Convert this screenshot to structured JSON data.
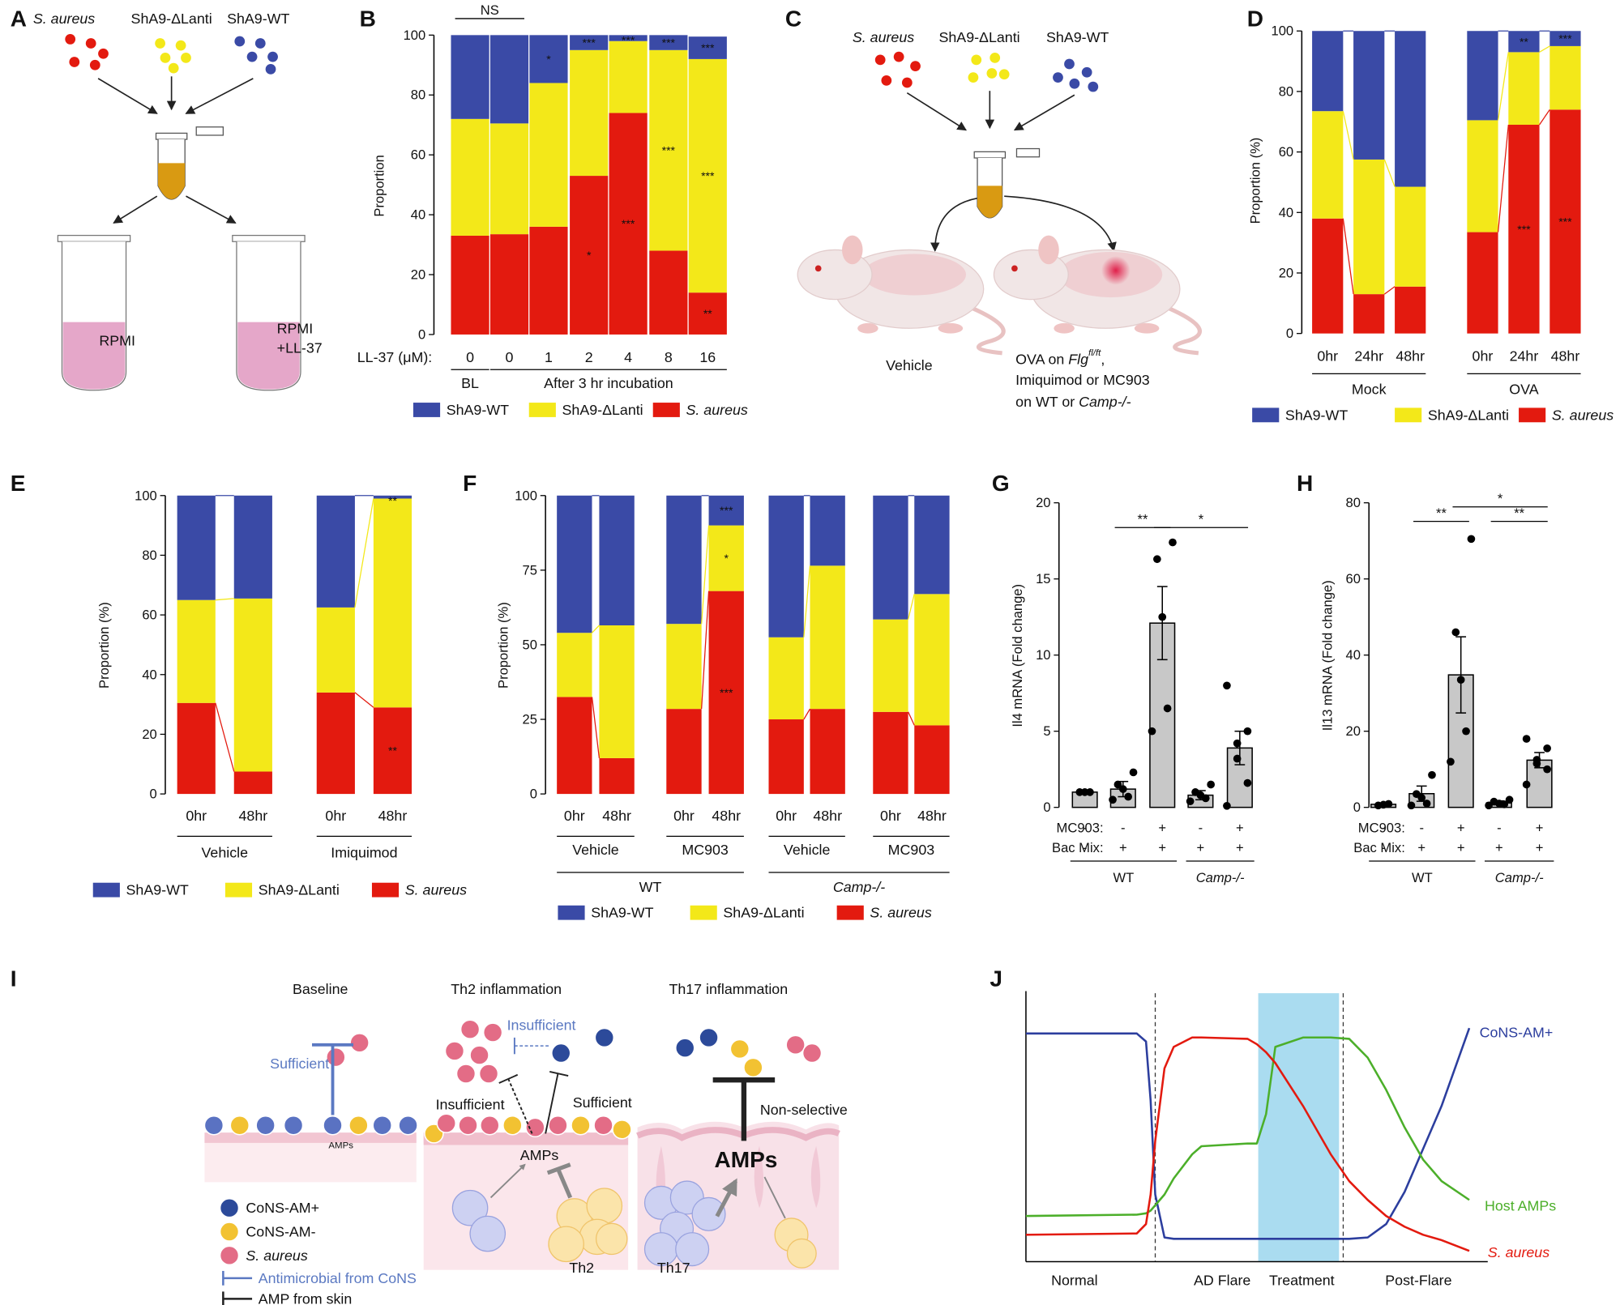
{
  "panel_labels": [
    "A",
    "B",
    "C",
    "D",
    "E",
    "F",
    "G",
    "H",
    "I",
    "J"
  ],
  "diagram_a": {
    "strains": [
      "S. aureus",
      "ShA9-ΔLanti",
      "ShA9-WT"
    ],
    "tube_left": "RPMI",
    "tube_right": [
      "RPMI",
      "+LL-37"
    ]
  },
  "diagram_c": {
    "strains": [
      "S. aureus",
      "ShA9-ΔLanti",
      "ShA9-WT"
    ],
    "left_label": "Vehicle",
    "right_label": {
      "line1": "OVA on ",
      "gene": "Flg",
      "superscript": "fl/ft",
      "line1_end": ",",
      "line2": "Imiquimod or MC903",
      "line3": "on WT or ",
      "line3_gene": "Camp-/-"
    }
  },
  "diagram_i": {
    "titles": [
      "Baseline",
      "Th2 inflammation",
      "Th17 inflammation"
    ],
    "baseline": {
      "sufficient": "Sufficient",
      "amps": "AMPs"
    },
    "th2": {
      "insufficient_cons": "Insufficient",
      "insufficient_skin": "Insufficient",
      "sufficient": "Sufficient",
      "amps": "AMPs",
      "cells": "Th2"
    },
    "th17": {
      "non_selective": "Non-selective",
      "amps": "AMPs",
      "cells": "Th17"
    },
    "legend": [
      "CoNS-AM+",
      "CoNS-AM-",
      "S. aureus",
      "Antimicrobial from CoNS",
      "AMP from skin"
    ]
  },
  "chart_data": [
    {
      "type": "stacked_bar",
      "ylabel": "Proportion",
      "x_label": "LL-37 (μM):",
      "ylim": [
        0,
        100
      ],
      "yticks": [
        0,
        20,
        40,
        60,
        80,
        100
      ],
      "groups": [
        {
          "label": "BL",
          "categories": [
            "0"
          ]
        },
        {
          "label": "After 3 hr incubation",
          "categories": [
            "0",
            "1",
            "2",
            "4",
            "8",
            "16"
          ]
        }
      ],
      "series": [
        {
          "name": "ShA9-WT",
          "color": "#3a4aa6",
          "values": [
            28,
            29.5,
            16,
            5,
            2,
            5,
            7.5
          ],
          "significance": [
            null,
            null,
            "*",
            "***",
            "***",
            "***",
            "***"
          ]
        },
        {
          "name": "ShA9-ΔLanti",
          "color": "#f3e819",
          "values": [
            39,
            37,
            48,
            42,
            24,
            67,
            78
          ],
          "significance": [
            null,
            null,
            null,
            null,
            null,
            "***",
            "***"
          ]
        },
        {
          "name": "S. aureus",
          "color": "#e31a0f",
          "values": [
            33,
            33.5,
            36,
            53,
            74,
            28,
            14
          ],
          "significance": [
            null,
            null,
            null,
            "*",
            "***",
            null,
            "**"
          ]
        }
      ],
      "comparisons": [
        {
          "label": "NS",
          "between": [
            0,
            1
          ]
        }
      ]
    },
    {
      "type": "stacked_bar",
      "ylabel": "Proportion (%)",
      "ylim": [
        0,
        100
      ],
      "yticks": [
        0,
        20,
        40,
        60,
        80,
        100
      ],
      "groups": [
        {
          "label": "Mock",
          "categories": [
            "0hr",
            "24hr",
            "48hr"
          ]
        },
        {
          "label": "OVA",
          "categories": [
            "0hr",
            "24hr",
            "48hr"
          ]
        }
      ],
      "series": [
        {
          "name": "ShA9-WT",
          "color": "#3a4aa6",
          "values": [
            26.5,
            42.5,
            51.5,
            29.5,
            7,
            5
          ],
          "significance": [
            null,
            null,
            null,
            null,
            "**",
            "***"
          ]
        },
        {
          "name": "ShA9-ΔLanti",
          "color": "#f3e819",
          "values": [
            35.5,
            44.5,
            33,
            37,
            24,
            21
          ]
        },
        {
          "name": "S. aureus",
          "color": "#e31a0f",
          "values": [
            38,
            13,
            15.5,
            33.5,
            69,
            74
          ],
          "significance": [
            null,
            null,
            null,
            null,
            "***",
            "***"
          ]
        }
      ]
    },
    {
      "type": "stacked_bar",
      "ylabel": "Proportion (%)",
      "ylim": [
        0,
        100
      ],
      "yticks": [
        0,
        20,
        40,
        60,
        80,
        100
      ],
      "groups": [
        {
          "label": "Vehicle",
          "categories": [
            "0hr",
            "48hr"
          ]
        },
        {
          "label": "Imiquimod",
          "categories": [
            "0hr",
            "48hr"
          ]
        }
      ],
      "series": [
        {
          "name": "ShA9-WT",
          "color": "#3a4aa6",
          "values": [
            35,
            34.5,
            37.5,
            1
          ],
          "significance": [
            null,
            null,
            null,
            "**"
          ]
        },
        {
          "name": "ShA9-ΔLanti",
          "color": "#f3e819",
          "values": [
            34.5,
            58,
            28.5,
            70
          ]
        },
        {
          "name": "S. aureus",
          "color": "#e31a0f",
          "values": [
            30.5,
            7.5,
            34,
            29
          ],
          "significance": [
            null,
            null,
            null,
            "**"
          ]
        }
      ]
    },
    {
      "type": "stacked_bar",
      "ylabel": "Proportion (%)",
      "ylim": [
        0,
        100
      ],
      "yticks": [
        0,
        25,
        50,
        75,
        100
      ],
      "supergroups": [
        {
          "label": "WT",
          "groups": [
            {
              "label": "Vehicle",
              "categories": [
                "0hr",
                "48hr"
              ]
            },
            {
              "label": "MC903",
              "categories": [
                "0hr",
                "48hr"
              ]
            }
          ]
        },
        {
          "label": "Camp-/-",
          "groups": [
            {
              "label": "Vehicle",
              "categories": [
                "0hr",
                "48hr"
              ]
            },
            {
              "label": "MC903",
              "categories": [
                "0hr",
                "48hr"
              ]
            }
          ]
        }
      ],
      "series": [
        {
          "name": "ShA9-WT",
          "color": "#3a4aa6",
          "values": [
            46,
            43.5,
            43,
            10,
            47.5,
            23.5,
            41.5,
            33
          ],
          "significance": [
            null,
            null,
            null,
            "***",
            null,
            null,
            null,
            null
          ]
        },
        {
          "name": "ShA9-ΔLanti",
          "color": "#f3e819",
          "values": [
            21.5,
            44.5,
            28.5,
            22,
            27.5,
            48,
            31,
            44
          ],
          "significance": [
            null,
            null,
            null,
            "*",
            null,
            null,
            null,
            null
          ]
        },
        {
          "name": "S. aureus",
          "color": "#e31a0f",
          "values": [
            32.5,
            12,
            28.5,
            68,
            25,
            28.5,
            27.5,
            23
          ],
          "significance": [
            null,
            null,
            null,
            "***",
            null,
            null,
            null,
            null
          ]
        }
      ]
    },
    {
      "type": "bar_dot",
      "ylabel": "Il4 mRNA (Fold change)",
      "color": "#c8c8c8",
      "ylim": [
        0,
        20
      ],
      "yticks": [
        0,
        5,
        10,
        15,
        20
      ],
      "row_labels": [
        "MC903:",
        "Bac Mix:"
      ],
      "groups": [
        {
          "label": "WT",
          "columns": [
            [
              "-",
              "-"
            ],
            [
              "-",
              "+"
            ],
            [
              "+",
              "+"
            ]
          ]
        },
        {
          "label": "Camp-/-",
          "columns": [
            [
              "-",
              "+"
            ],
            [
              "+",
              "+"
            ]
          ]
        }
      ],
      "values": [
        1.0,
        1.2,
        12.1,
        0.8,
        3.9
      ],
      "errors": [
        0.05,
        0.5,
        2.4,
        0.3,
        1.1
      ],
      "points": [
        [
          1,
          1,
          1
        ],
        [
          0.5,
          0.7,
          1.2,
          1.5,
          2.3
        ],
        [
          5,
          6.5,
          12.5,
          16.3,
          17.4
        ],
        [
          0.4,
          0.6,
          0.8,
          1,
          1.5
        ],
        [
          0.1,
          1.6,
          3.2,
          4.2,
          5,
          8
        ]
      ],
      "comparisons": [
        {
          "label": "**",
          "between": [
            1,
            2
          ]
        },
        {
          "label": "*",
          "between": [
            2,
            4
          ]
        }
      ]
    },
    {
      "type": "bar_dot",
      "ylabel": "Il13 mRNA (Fold change)",
      "color": "#c8c8c8",
      "ylim": [
        0,
        80
      ],
      "yticks": [
        0,
        20,
        40,
        60,
        80
      ],
      "row_labels": [
        "MC903:",
        "Bac Mix:"
      ],
      "groups": [
        {
          "label": "WT",
          "columns": [
            [
              "-",
              "-"
            ],
            [
              "-",
              "+"
            ],
            [
              "+",
              "+"
            ]
          ]
        },
        {
          "label": "Camp-/-",
          "columns": [
            [
              "-",
              "+"
            ],
            [
              "+",
              "+"
            ]
          ]
        }
      ],
      "values": [
        0.8,
        3.6,
        34.8,
        1.2,
        12.4
      ],
      "errors": [
        0.1,
        2,
        10,
        0.5,
        2
      ],
      "points": [
        [
          0.5,
          0.7,
          0.9
        ],
        [
          0.5,
          1,
          2.5,
          3.5,
          8.5
        ],
        [
          12,
          20,
          33.5,
          46,
          70.5
        ],
        [
          0.5,
          0.8,
          1,
          1.5,
          2
        ],
        [
          6,
          10,
          11.5,
          12.5,
          15.5,
          18
        ]
      ],
      "comparisons": [
        {
          "label": "**",
          "between": [
            1,
            2
          ]
        },
        {
          "label": "*",
          "between": [
            2,
            4
          ]
        },
        {
          "label": "**",
          "between": [
            3,
            4
          ]
        }
      ]
    },
    {
      "type": "line",
      "xlim": [
        0,
        100
      ],
      "ylim": [
        0,
        100
      ],
      "x": [
        0,
        24,
        26,
        27,
        28,
        30,
        32,
        36,
        38,
        48,
        50,
        52,
        54,
        60,
        66,
        70,
        74,
        78,
        82,
        86,
        90,
        96
      ],
      "series": [
        {
          "name": "CoNS-AM+",
          "color": "#2c3e9e",
          "values": [
            85,
            85,
            82,
            60,
            25,
            9,
            8.5,
            8.5,
            8.5,
            8.5,
            8.5,
            8.5,
            8.5,
            8.5,
            8.5,
            8.5,
            9,
            14,
            26,
            42,
            58,
            87
          ]
        },
        {
          "name": "Host AMPs",
          "color": "#4caf2a",
          "values": [
            17,
            17.5,
            18,
            19,
            21,
            25,
            31,
            40,
            43,
            44,
            44,
            55,
            80,
            83.5,
            83.5,
            83,
            76,
            64,
            50,
            38,
            30,
            23
          ]
        },
        {
          "name": "S. aureus",
          "color": "#e31a0f",
          "values": [
            10,
            10.5,
            14,
            25,
            45,
            72,
            80,
            83.5,
            83.5,
            83,
            81,
            78,
            74,
            58,
            40,
            30,
            23,
            17,
            13,
            10,
            8,
            4
          ]
        }
      ],
      "regions": [
        "Normal",
        "AD Flare",
        "Treatment",
        "Post-Flare"
      ],
      "shaded_range": [
        50.3,
        67.8
      ],
      "shade_color": "#aadcf0",
      "dashed_lines": [
        28,
        68.7
      ]
    }
  ]
}
